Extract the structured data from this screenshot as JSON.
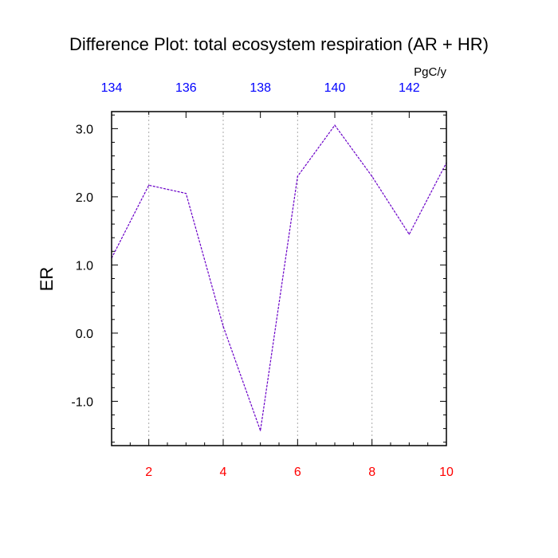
{
  "chart_data": {
    "type": "line",
    "title": "Difference Plot: total ecosystem respiration (AR + HR)",
    "ylabel": "ER",
    "top_axis_units": "PgC/y",
    "x": [
      1,
      2,
      3,
      4,
      5,
      6,
      7,
      8,
      9,
      10
    ],
    "series": [
      {
        "values": [
          1.1,
          2.17,
          2.05,
          0.1,
          -1.43,
          2.3,
          3.05,
          2.3,
          1.45,
          2.5
        ],
        "color": "#6a00c8",
        "style": "dashed"
      }
    ],
    "xlim": [
      1,
      10
    ],
    "ylim": [
      -1.65,
      3.25
    ],
    "x_ticks": [
      2,
      4,
      6,
      8,
      10
    ],
    "x_tick_labels": [
      "2",
      "4",
      "6",
      "8",
      "10"
    ],
    "y_ticks": [
      -1.0,
      0.0,
      1.0,
      2.0,
      3.0
    ],
    "y_tick_labels": [
      "-1.0",
      "0.0",
      "1.0",
      "2.0",
      "3.0"
    ],
    "top_axis_range": [
      134,
      143
    ],
    "top_ticks": [
      134,
      136,
      138,
      140,
      142
    ],
    "top_tick_labels": [
      "134",
      "136",
      "138",
      "140",
      "142"
    ],
    "grid": "vertical dotted at bottom major ticks",
    "colors": {
      "bottom_ticks": "#ff0000",
      "top_ticks": "#0000ff",
      "line": "#6a00c8",
      "grid": "#aaaaaa"
    }
  }
}
